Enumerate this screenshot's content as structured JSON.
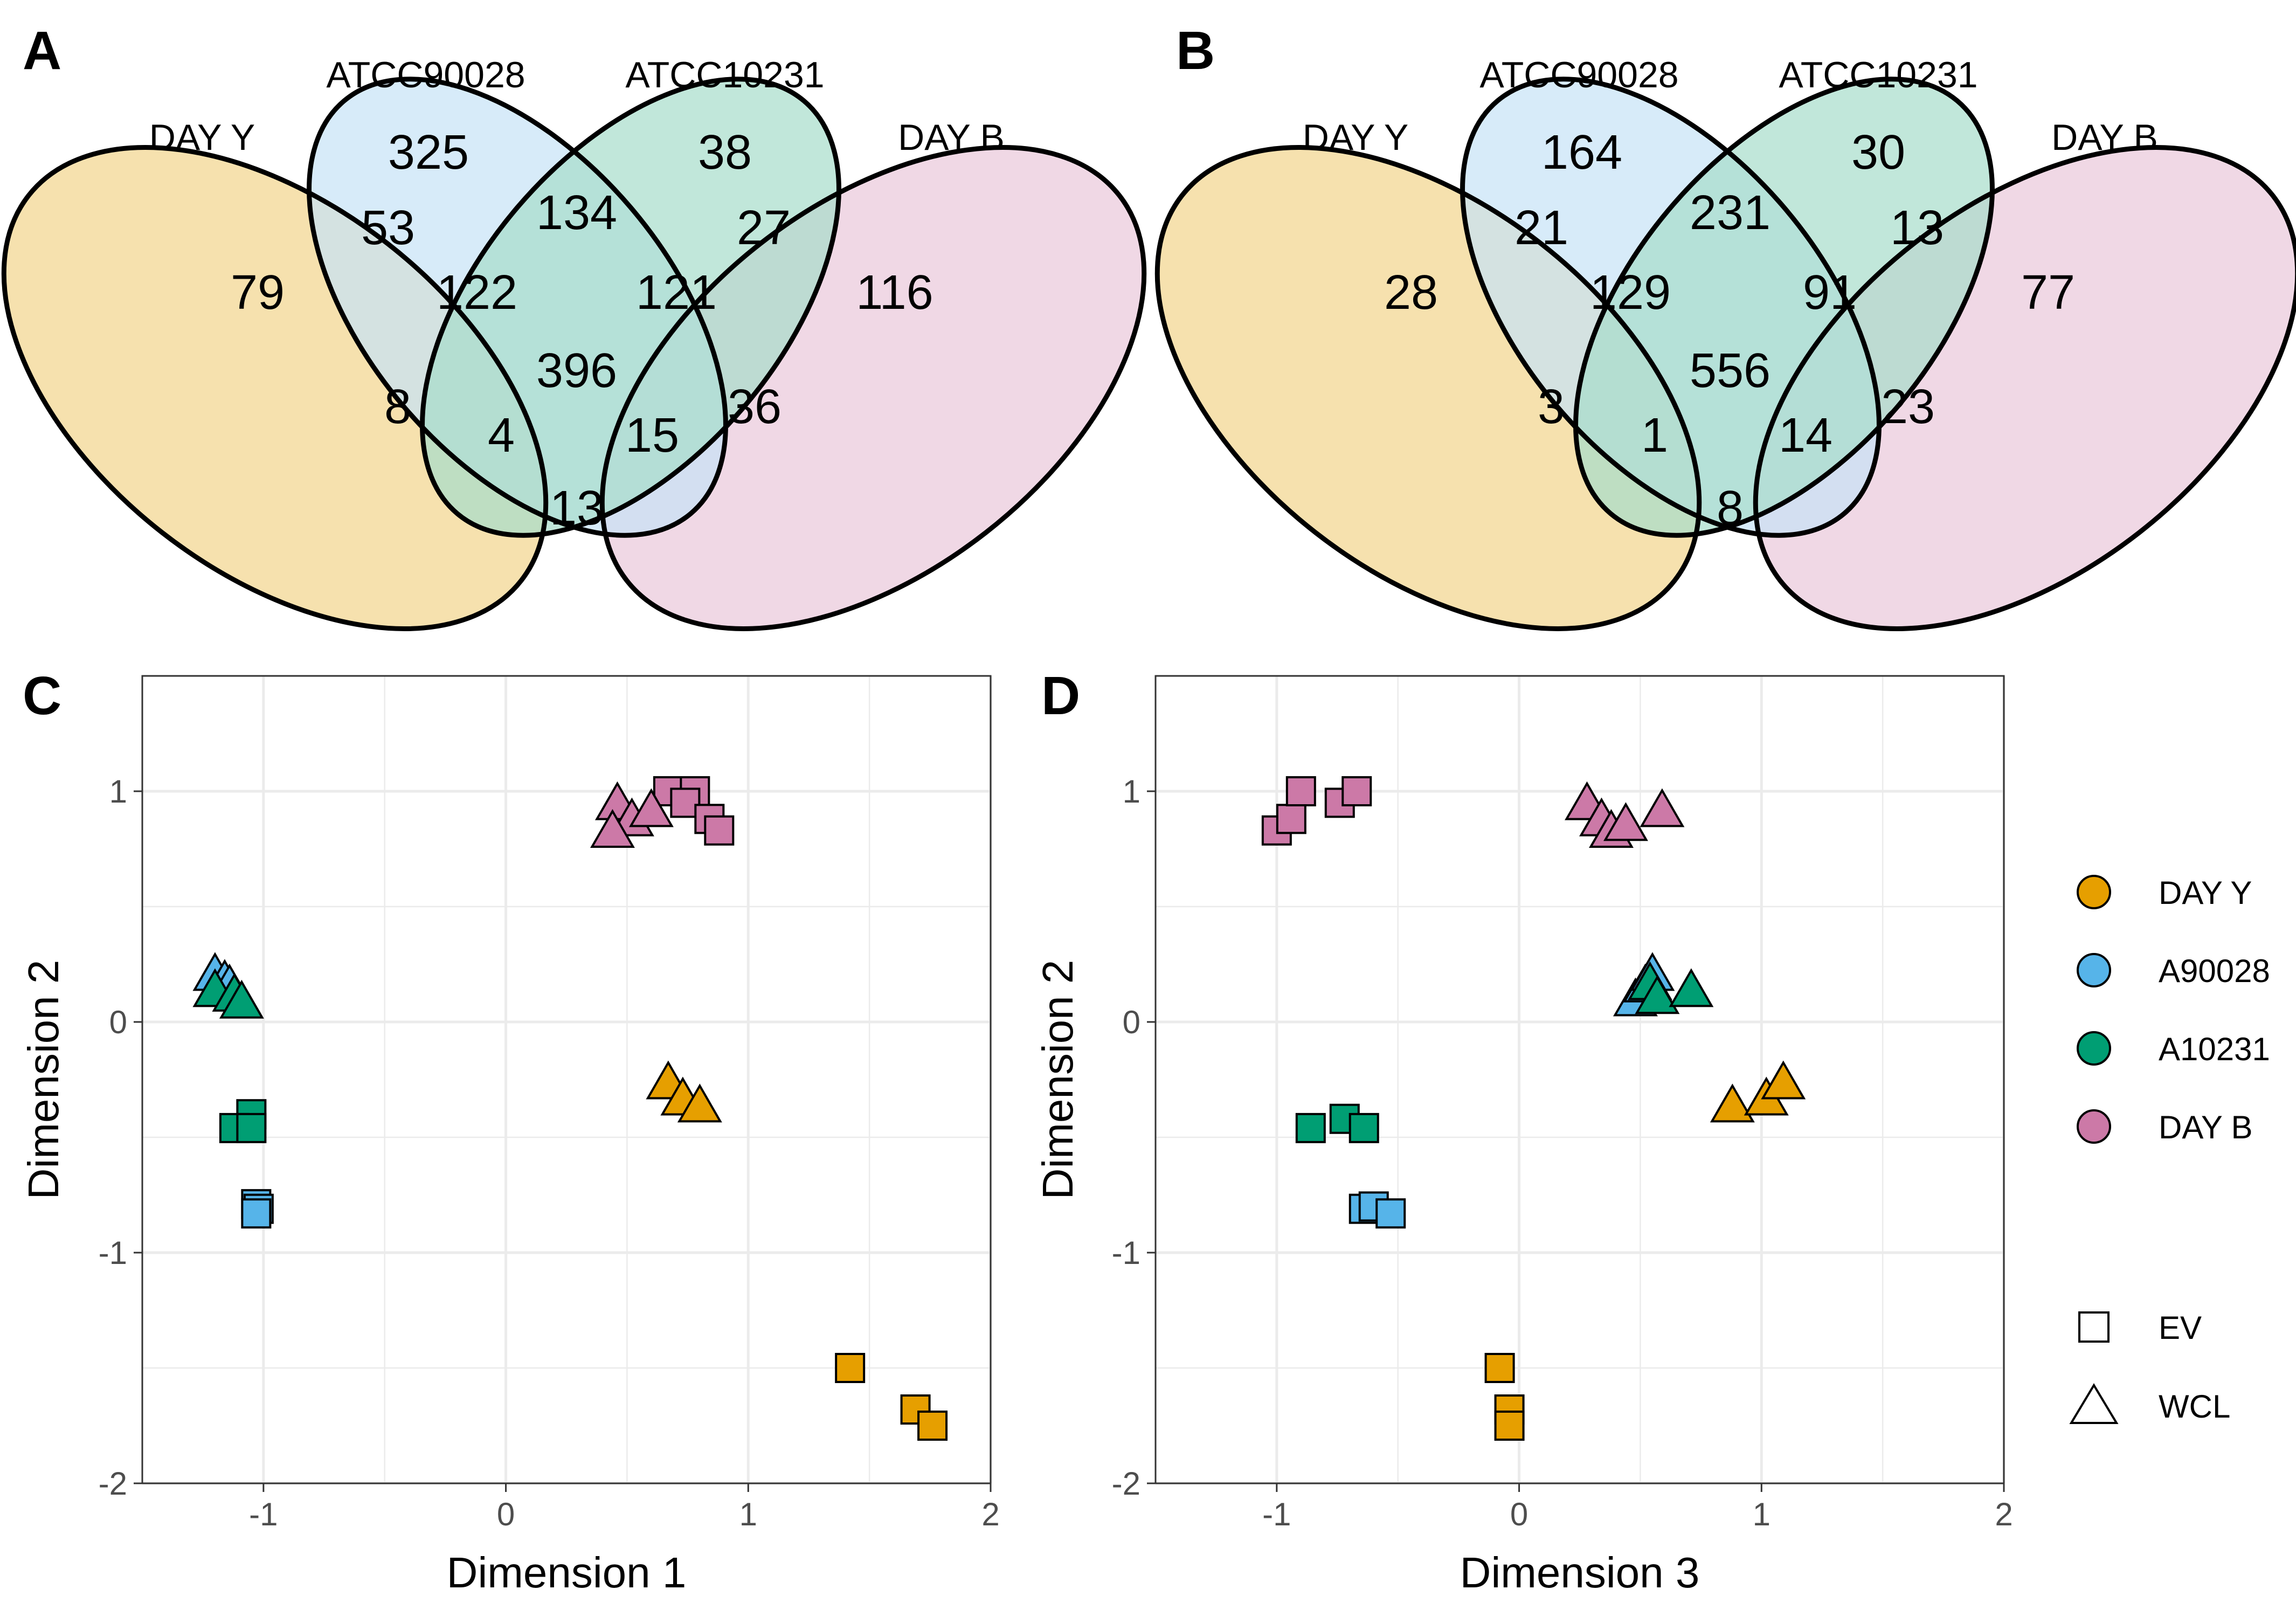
{
  "colors": {
    "day_y": "#E69F00",
    "a90028": "#56B4E9",
    "a10231": "#009E73",
    "day_b": "#CC79A7",
    "venn_day_y_fill": "#F5DEA5",
    "venn_atcc90028_fill": "#C6E3F6",
    "venn_atcc10231_fill": "#A7DDCB",
    "venn_day_b_fill": "#EED4E2"
  },
  "panels": {
    "a": {
      "letter": "A"
    },
    "b": {
      "letter": "B"
    },
    "c": {
      "letter": "C"
    },
    "d": {
      "letter": "D"
    }
  },
  "venn": {
    "set_labels": {
      "day_y": "DAY Y",
      "atcc90028": "ATCC90028",
      "atcc10231": "ATCC10231",
      "day_b": "DAY B"
    },
    "panel_a": {
      "Y": "79",
      "A": "325",
      "C": "38",
      "B": "116",
      "YA": "53",
      "AC": "134",
      "CB": "27",
      "YAC": "122",
      "ACB": "121",
      "YACB": "396",
      "YC": "8",
      "AB": "36",
      "YCB": "4",
      "YAB": "15",
      "YB": "13"
    },
    "panel_b": {
      "Y": "28",
      "A": "164",
      "C": "30",
      "B": "77",
      "YA": "21",
      "AC": "231",
      "CB": "13",
      "YAC": "129",
      "ACB": "91",
      "YACB": "556",
      "YC": "3",
      "AB": "23",
      "YCB": "1",
      "YAB": "14",
      "YB": "8"
    }
  },
  "chart_data": [
    {
      "type": "scatter",
      "panel": "C",
      "xlabel": "Dimension 1",
      "ylabel": "Dimension 2",
      "xlim": [
        -1.5,
        2.0
      ],
      "ylim": [
        -2.0,
        1.5
      ],
      "x_ticks": [
        -1,
        0,
        1,
        2
      ],
      "y_ticks": [
        -2,
        -1,
        0,
        1
      ],
      "grid": true,
      "series": [
        {
          "name": "DAY Y",
          "shape": "EV",
          "points": [
            [
              1.42,
              -1.5
            ],
            [
              1.69,
              -1.68
            ],
            [
              1.76,
              -1.75
            ]
          ]
        },
        {
          "name": "DAY Y",
          "shape": "WCL",
          "points": [
            [
              0.67,
              -0.27
            ],
            [
              0.73,
              -0.34
            ],
            [
              0.8,
              -0.37
            ]
          ]
        },
        {
          "name": "A90028",
          "shape": "EV",
          "points": [
            [
              -1.03,
              -0.79
            ],
            [
              -1.02,
              -0.81
            ],
            [
              -1.03,
              -0.83
            ]
          ]
        },
        {
          "name": "A90028",
          "shape": "WCL",
          "points": [
            [
              -1.2,
              0.2
            ],
            [
              -1.16,
              0.17
            ],
            [
              -1.14,
              0.15
            ]
          ]
        },
        {
          "name": "A10231",
          "shape": "EV",
          "points": [
            [
              -1.05,
              -0.4
            ],
            [
              -1.12,
              -0.46
            ],
            [
              -1.05,
              -0.46
            ]
          ]
        },
        {
          "name": "A10231",
          "shape": "WCL",
          "points": [
            [
              -1.2,
              0.13
            ],
            [
              -1.12,
              0.11
            ],
            [
              -1.09,
              0.08
            ]
          ]
        },
        {
          "name": "DAY B",
          "shape": "EV",
          "points": [
            [
              0.67,
              1.0
            ],
            [
              0.78,
              1.0
            ],
            [
              0.74,
              0.95
            ],
            [
              0.84,
              0.88
            ],
            [
              0.88,
              0.83
            ]
          ]
        },
        {
          "name": "DAY B",
          "shape": "WCL",
          "points": [
            [
              0.46,
              0.94
            ],
            [
              0.52,
              0.87
            ],
            [
              0.6,
              0.91
            ],
            [
              0.44,
              0.82
            ]
          ]
        }
      ]
    },
    {
      "type": "scatter",
      "panel": "D",
      "xlabel": "Dimension 3",
      "ylabel": "Dimension 2",
      "xlim": [
        -1.5,
        2.0
      ],
      "ylim": [
        -2.0,
        1.5
      ],
      "x_ticks": [
        -1,
        0,
        1,
        2
      ],
      "y_ticks": [
        -2,
        -1,
        0,
        1
      ],
      "grid": true,
      "series": [
        {
          "name": "DAY Y",
          "shape": "EV",
          "points": [
            [
              -0.08,
              -1.5
            ],
            [
              -0.04,
              -1.68
            ],
            [
              -0.04,
              -1.75
            ]
          ]
        },
        {
          "name": "DAY Y",
          "shape": "WCL",
          "points": [
            [
              0.88,
              -0.37
            ],
            [
              1.02,
              -0.34
            ],
            [
              1.09,
              -0.27
            ]
          ]
        },
        {
          "name": "A90028",
          "shape": "EV",
          "points": [
            [
              -0.64,
              -0.81
            ],
            [
              -0.6,
              -0.8
            ],
            [
              -0.53,
              -0.83
            ]
          ]
        },
        {
          "name": "A90028",
          "shape": "WCL",
          "points": [
            [
              0.48,
              0.09
            ],
            [
              0.52,
              0.15
            ],
            [
              0.55,
              0.2
            ]
          ]
        },
        {
          "name": "A10231",
          "shape": "EV",
          "points": [
            [
              -0.86,
              -0.46
            ],
            [
              -0.72,
              -0.42
            ],
            [
              -0.64,
              -0.46
            ]
          ]
        },
        {
          "name": "A10231",
          "shape": "WCL",
          "points": [
            [
              0.54,
              0.16
            ],
            [
              0.57,
              0.1
            ],
            [
              0.71,
              0.13
            ]
          ]
        },
        {
          "name": "DAY B",
          "shape": "EV",
          "points": [
            [
              -1.0,
              0.83
            ],
            [
              -0.94,
              0.88
            ],
            [
              -0.9,
              1.0
            ],
            [
              -0.74,
              0.95
            ],
            [
              -0.67,
              1.0
            ]
          ]
        },
        {
          "name": "DAY B",
          "shape": "WCL",
          "points": [
            [
              0.28,
              0.94
            ],
            [
              0.34,
              0.87
            ],
            [
              0.38,
              0.82
            ],
            [
              0.44,
              0.85
            ],
            [
              0.59,
              0.91
            ]
          ]
        }
      ]
    }
  ],
  "legend": {
    "groups": [
      {
        "key": "day_y",
        "label": "DAY Y"
      },
      {
        "key": "a90028",
        "label": "A90028"
      },
      {
        "key": "a10231",
        "label": "A10231"
      },
      {
        "key": "day_b",
        "label": "DAY B"
      }
    ],
    "shapes": [
      {
        "key": "EV",
        "label": "EV"
      },
      {
        "key": "WCL",
        "label": "WCL"
      }
    ]
  }
}
